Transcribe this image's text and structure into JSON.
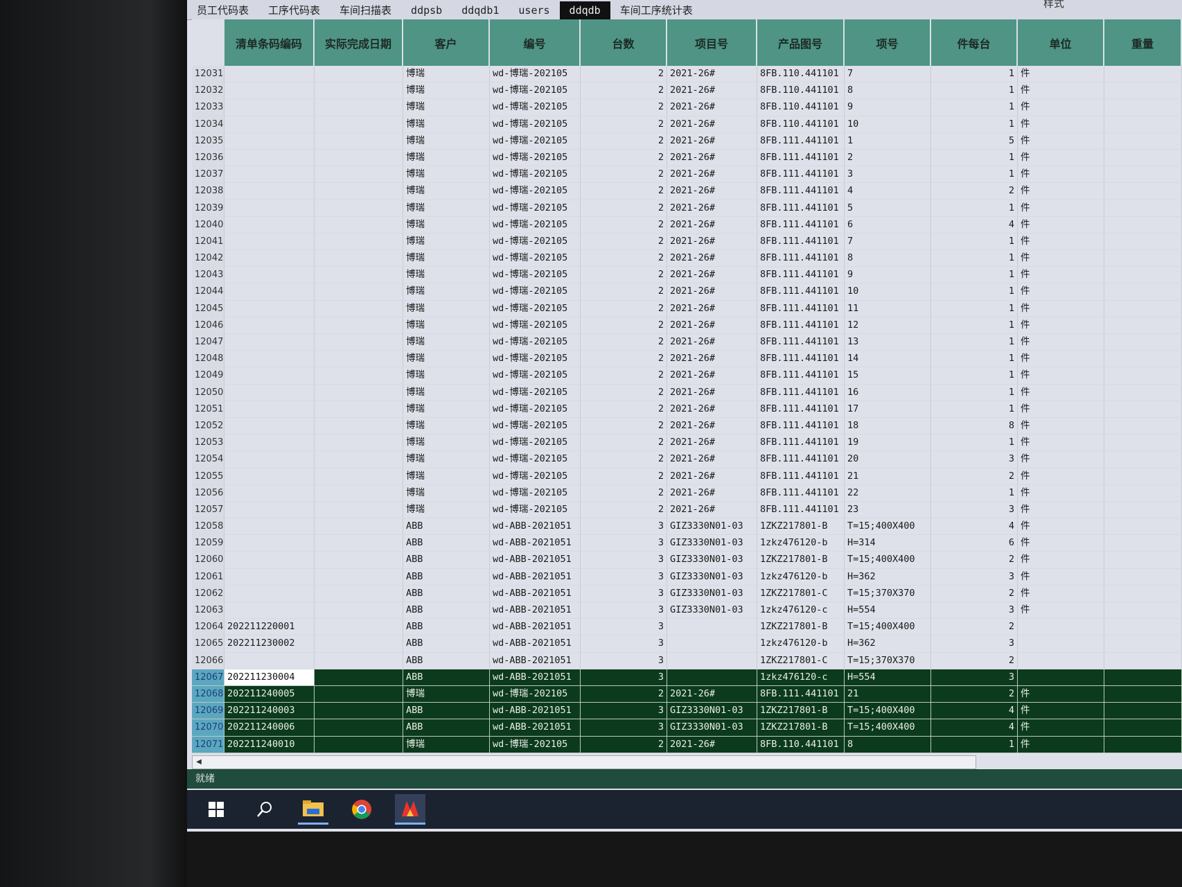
{
  "ribbon": {
    "style_label": "样式"
  },
  "tabs": [
    "员工代码表",
    "工序代码表",
    "车间扫描表",
    "ddpsb",
    "ddqdb1",
    "users",
    "ddqdb",
    "车间工序统计表"
  ],
  "active_tab": "ddqdb",
  "columns": [
    "清单条码编码",
    "实际完成日期",
    "客户",
    "编号",
    "台数",
    "项目号",
    "产品图号",
    "项号",
    "件每台",
    "单位",
    "重量"
  ],
  "rows": [
    [
      "12031",
      "",
      "",
      "博瑞",
      "wd-博瑞-202105",
      "2",
      "2021-26#",
      "8FB.110.441101",
      "7",
      "1",
      "件",
      ""
    ],
    [
      "12032",
      "",
      "",
      "博瑞",
      "wd-博瑞-202105",
      "2",
      "2021-26#",
      "8FB.110.441101",
      "8",
      "1",
      "件",
      ""
    ],
    [
      "12033",
      "",
      "",
      "博瑞",
      "wd-博瑞-202105",
      "2",
      "2021-26#",
      "8FB.110.441101",
      "9",
      "1",
      "件",
      ""
    ],
    [
      "12034",
      "",
      "",
      "博瑞",
      "wd-博瑞-202105",
      "2",
      "2021-26#",
      "8FB.110.441101",
      "10",
      "1",
      "件",
      ""
    ],
    [
      "12035",
      "",
      "",
      "博瑞",
      "wd-博瑞-202105",
      "2",
      "2021-26#",
      "8FB.111.441101",
      "1",
      "5",
      "件",
      ""
    ],
    [
      "12036",
      "",
      "",
      "博瑞",
      "wd-博瑞-202105",
      "2",
      "2021-26#",
      "8FB.111.441101",
      "2",
      "1",
      "件",
      ""
    ],
    [
      "12037",
      "",
      "",
      "博瑞",
      "wd-博瑞-202105",
      "2",
      "2021-26#",
      "8FB.111.441101",
      "3",
      "1",
      "件",
      ""
    ],
    [
      "12038",
      "",
      "",
      "博瑞",
      "wd-博瑞-202105",
      "2",
      "2021-26#",
      "8FB.111.441101",
      "4",
      "2",
      "件",
      ""
    ],
    [
      "12039",
      "",
      "",
      "博瑞",
      "wd-博瑞-202105",
      "2",
      "2021-26#",
      "8FB.111.441101",
      "5",
      "1",
      "件",
      ""
    ],
    [
      "12040",
      "",
      "",
      "博瑞",
      "wd-博瑞-202105",
      "2",
      "2021-26#",
      "8FB.111.441101",
      "6",
      "4",
      "件",
      ""
    ],
    [
      "12041",
      "",
      "",
      "博瑞",
      "wd-博瑞-202105",
      "2",
      "2021-26#",
      "8FB.111.441101",
      "7",
      "1",
      "件",
      ""
    ],
    [
      "12042",
      "",
      "",
      "博瑞",
      "wd-博瑞-202105",
      "2",
      "2021-26#",
      "8FB.111.441101",
      "8",
      "1",
      "件",
      ""
    ],
    [
      "12043",
      "",
      "",
      "博瑞",
      "wd-博瑞-202105",
      "2",
      "2021-26#",
      "8FB.111.441101",
      "9",
      "1",
      "件",
      ""
    ],
    [
      "12044",
      "",
      "",
      "博瑞",
      "wd-博瑞-202105",
      "2",
      "2021-26#",
      "8FB.111.441101",
      "10",
      "1",
      "件",
      ""
    ],
    [
      "12045",
      "",
      "",
      "博瑞",
      "wd-博瑞-202105",
      "2",
      "2021-26#",
      "8FB.111.441101",
      "11",
      "1",
      "件",
      ""
    ],
    [
      "12046",
      "",
      "",
      "博瑞",
      "wd-博瑞-202105",
      "2",
      "2021-26#",
      "8FB.111.441101",
      "12",
      "1",
      "件",
      ""
    ],
    [
      "12047",
      "",
      "",
      "博瑞",
      "wd-博瑞-202105",
      "2",
      "2021-26#",
      "8FB.111.441101",
      "13",
      "1",
      "件",
      ""
    ],
    [
      "12048",
      "",
      "",
      "博瑞",
      "wd-博瑞-202105",
      "2",
      "2021-26#",
      "8FB.111.441101",
      "14",
      "1",
      "件",
      ""
    ],
    [
      "12049",
      "",
      "",
      "博瑞",
      "wd-博瑞-202105",
      "2",
      "2021-26#",
      "8FB.111.441101",
      "15",
      "1",
      "件",
      ""
    ],
    [
      "12050",
      "",
      "",
      "博瑞",
      "wd-博瑞-202105",
      "2",
      "2021-26#",
      "8FB.111.441101",
      "16",
      "1",
      "件",
      ""
    ],
    [
      "12051",
      "",
      "",
      "博瑞",
      "wd-博瑞-202105",
      "2",
      "2021-26#",
      "8FB.111.441101",
      "17",
      "1",
      "件",
      ""
    ],
    [
      "12052",
      "",
      "",
      "博瑞",
      "wd-博瑞-202105",
      "2",
      "2021-26#",
      "8FB.111.441101",
      "18",
      "8",
      "件",
      ""
    ],
    [
      "12053",
      "",
      "",
      "博瑞",
      "wd-博瑞-202105",
      "2",
      "2021-26#",
      "8FB.111.441101",
      "19",
      "1",
      "件",
      ""
    ],
    [
      "12054",
      "",
      "",
      "博瑞",
      "wd-博瑞-202105",
      "2",
      "2021-26#",
      "8FB.111.441101",
      "20",
      "3",
      "件",
      ""
    ],
    [
      "12055",
      "",
      "",
      "博瑞",
      "wd-博瑞-202105",
      "2",
      "2021-26#",
      "8FB.111.441101",
      "21",
      "2",
      "件",
      ""
    ],
    [
      "12056",
      "",
      "",
      "博瑞",
      "wd-博瑞-202105",
      "2",
      "2021-26#",
      "8FB.111.441101",
      "22",
      "1",
      "件",
      ""
    ],
    [
      "12057",
      "",
      "",
      "博瑞",
      "wd-博瑞-202105",
      "2",
      "2021-26#",
      "8FB.111.441101",
      "23",
      "3",
      "件",
      ""
    ],
    [
      "12058",
      "",
      "",
      "ABB",
      "wd-ABB-2021051",
      "3",
      "GIZ3330N01-03",
      "1ZKZ217801-B",
      "T=15;400X400",
      "4",
      "件",
      ""
    ],
    [
      "12059",
      "",
      "",
      "ABB",
      "wd-ABB-2021051",
      "3",
      "GIZ3330N01-03",
      "1zkz476120-b",
      "H=314",
      "6",
      "件",
      ""
    ],
    [
      "12060",
      "",
      "",
      "ABB",
      "wd-ABB-2021051",
      "3",
      "GIZ3330N01-03",
      "1ZKZ217801-B",
      "T=15;400X400",
      "2",
      "件",
      ""
    ],
    [
      "12061",
      "",
      "",
      "ABB",
      "wd-ABB-2021051",
      "3",
      "GIZ3330N01-03",
      "1zkz476120-b",
      "H=362",
      "3",
      "件",
      ""
    ],
    [
      "12062",
      "",
      "",
      "ABB",
      "wd-ABB-2021051",
      "3",
      "GIZ3330N01-03",
      "1ZKZ217801-C",
      "T=15;370X370",
      "2",
      "件",
      ""
    ],
    [
      "12063",
      "",
      "",
      "ABB",
      "wd-ABB-2021051",
      "3",
      "GIZ3330N01-03",
      "1zkz476120-c",
      "H=554",
      "3",
      "件",
      ""
    ],
    [
      "12064",
      "202211220001",
      "",
      "ABB",
      "wd-ABB-2021051",
      "3",
      "",
      "1ZKZ217801-B",
      "T=15;400X400",
      "2",
      "",
      ""
    ],
    [
      "12065",
      "202211230002",
      "",
      "ABB",
      "wd-ABB-2021051",
      "3",
      "",
      "1zkz476120-b",
      "H=362",
      "3",
      "",
      ""
    ],
    [
      "12066",
      "",
      "",
      "ABB",
      "wd-ABB-2021051",
      "3",
      "",
      "1ZKZ217801-C",
      "T=15;370X370",
      "2",
      "",
      ""
    ],
    [
      "12067",
      "202211230004",
      "",
      "ABB",
      "wd-ABB-2021051",
      "3",
      "",
      "1zkz476120-c",
      "H=554",
      "3",
      "",
      ""
    ],
    [
      "12068",
      "202211240005",
      "",
      "博瑞",
      "wd-博瑞-202105",
      "2",
      "2021-26#",
      "8FB.111.441101",
      "21",
      "2",
      "件",
      ""
    ],
    [
      "12069",
      "202211240003",
      "",
      "ABB",
      "wd-ABB-2021051",
      "3",
      "GIZ3330N01-03",
      "1ZKZ217801-B",
      "T=15;400X400",
      "4",
      "件",
      ""
    ],
    [
      "12070",
      "202211240006",
      "",
      "ABB",
      "wd-ABB-2021051",
      "3",
      "GIZ3330N01-03",
      "1ZKZ217801-B",
      "T=15;400X400",
      "4",
      "件",
      ""
    ],
    [
      "12071",
      "202211240010",
      "",
      "博瑞",
      "wd-博瑞-202105",
      "2",
      "2021-26#",
      "8FB.110.441101",
      "8",
      "1",
      "件",
      ""
    ]
  ],
  "selected_rows": [
    "12067",
    "12068",
    "12069",
    "12070",
    "12071"
  ],
  "current_row": "12067",
  "status": {
    "text": "就绪"
  },
  "taskbar": {
    "icons": [
      "windows-start-icon",
      "search-icon",
      "file-explorer-icon",
      "chrome-icon",
      "app-icon"
    ]
  },
  "colors": {
    "header": "#4f9484",
    "selection": "#0c3a1d",
    "status_bar": "#1f4c3c"
  }
}
